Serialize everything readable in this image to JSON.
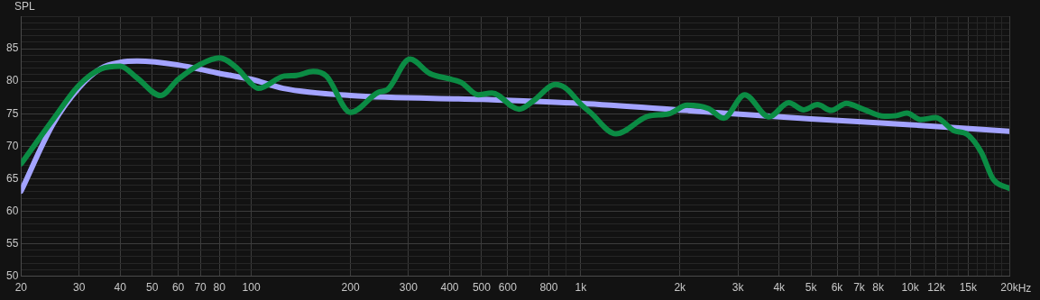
{
  "chart_data": {
    "type": "line",
    "ylabel": "SPL",
    "xlim": [
      20,
      20000
    ],
    "xticks": [
      20,
      30,
      40,
      50,
      60,
      70,
      80,
      {
        "value": 90,
        "label": null
      },
      100,
      200,
      300,
      400,
      500,
      600,
      {
        "value": 700,
        "label": null
      },
      800,
      {
        "value": 900,
        "label": null
      },
      {
        "value": 1000,
        "label": "1k"
      },
      {
        "value": 2000,
        "label": "2k"
      },
      {
        "value": 3000,
        "label": "3k"
      },
      {
        "value": 4000,
        "label": "4k"
      },
      {
        "value": 5000,
        "label": "5k"
      },
      {
        "value": 6000,
        "label": "6k"
      },
      {
        "value": 7000,
        "label": "7k"
      },
      {
        "value": 8000,
        "label": "8k"
      },
      {
        "value": 9000,
        "label": null
      },
      {
        "value": 10000,
        "label": "10k"
      },
      {
        "value": 11000,
        "label": null
      },
      {
        "value": 12000,
        "label": "12k"
      },
      {
        "value": 13000,
        "label": null
      },
      {
        "value": 14000,
        "label": null
      },
      {
        "value": 15000,
        "label": "15k"
      },
      {
        "value": 16000,
        "label": null
      },
      {
        "value": 17000,
        "label": null
      },
      {
        "value": 18000,
        "label": null
      },
      {
        "value": 19000,
        "label": null
      },
      {
        "value": 20000,
        "label": "20k"
      }
    ],
    "xlabel": "Hz",
    "ylim": [
      50,
      90
    ],
    "yticks": [
      50,
      {
        "value": 51,
        "label": null
      },
      {
        "value": 52,
        "label": null
      },
      {
        "value": 53,
        "label": null
      },
      {
        "value": 54,
        "label": null
      },
      55,
      {
        "value": 56,
        "label": null
      },
      {
        "value": 57,
        "label": null
      },
      {
        "value": 58,
        "label": null
      },
      {
        "value": 59,
        "label": null
      },
      60,
      {
        "value": 61,
        "label": null
      },
      {
        "value": 62,
        "label": null
      },
      {
        "value": 63,
        "label": null
      },
      {
        "value": 64,
        "label": null
      },
      65,
      {
        "value": 66,
        "label": null
      },
      {
        "value": 67,
        "label": null
      },
      {
        "value": 68,
        "label": null
      },
      {
        "value": 69,
        "label": null
      },
      70,
      {
        "value": 71,
        "label": null
      },
      {
        "value": 72,
        "label": null
      },
      {
        "value": 73,
        "label": null
      },
      {
        "value": 74,
        "label": null
      },
      75,
      {
        "value": 76,
        "label": null
      },
      {
        "value": 77,
        "label": null
      },
      {
        "value": 78,
        "label": null
      },
      {
        "value": 79,
        "label": null
      },
      80,
      {
        "value": 81,
        "label": null
      },
      {
        "value": 82,
        "label": null
      },
      {
        "value": 83,
        "label": null
      },
      {
        "value": 84,
        "label": null
      },
      85,
      {
        "value": 86,
        "label": null
      },
      {
        "value": 87,
        "label": null
      },
      {
        "value": 88,
        "label": null
      },
      {
        "value": 89,
        "label": null
      },
      {
        "value": 90,
        "label": null
      }
    ],
    "log": "x",
    "grid": true,
    "legend": false,
    "marker": "none",
    "line_style": "solid",
    "series": [
      {
        "color": "#0b8c44",
        "x": [
          20,
          25,
          30,
          35,
          40,
          45,
          53,
          60,
          70,
          80,
          91,
          100,
          105,
          126,
          137,
          154,
          169,
          200,
          243,
          259,
          303,
          348,
          403,
          434,
          488,
          537,
          650,
          715,
          838,
          902,
          1003,
          1069,
          1279,
          1597,
          1854,
          2104,
          2441,
          2714,
          3146,
          3729,
          4278,
          4756,
          5232,
          5754,
          6402,
          7188,
          8340,
          9080,
          9774,
          10754,
          11954,
          13574,
          14930,
          16426,
          17880,
          20000
        ],
        "values": [
          67.3,
          74.1,
          79.4,
          81.9,
          82.3,
          80.5,
          77.8,
          80.3,
          82.6,
          83.6,
          81.9,
          79.6,
          78.9,
          80.8,
          80.9,
          81.5,
          80.8,
          75.2,
          78.3,
          78.7,
          83.4,
          81.2,
          80.3,
          79.8,
          77.9,
          78.2,
          75.7,
          76.9,
          79.5,
          78.9,
          76.4,
          75.2,
          71.9,
          74.6,
          75.0,
          76.3,
          75.8,
          74.3,
          77.9,
          74.5,
          76.7,
          75.6,
          76.4,
          75.5,
          76.6,
          75.7,
          74.6,
          74.7,
          75.1,
          74.1,
          74.4,
          72.4,
          71.8,
          69.1,
          64.9,
          63.5
        ]
      },
      {
        "color": "#a3a3ff",
        "x": [
          20,
          25,
          30,
          35,
          40,
          45,
          60,
          80,
          100,
          125,
          200,
          500,
          1000,
          2100,
          5000,
          10000,
          20000
        ],
        "values": [
          63.1,
          73.4,
          79.0,
          82.0,
          82.9,
          83.1,
          82.5,
          81.2,
          80.3,
          78.9,
          77.8,
          77.2,
          76.6,
          75.5,
          74.2,
          73.3,
          72.3
        ]
      }
    ]
  }
}
